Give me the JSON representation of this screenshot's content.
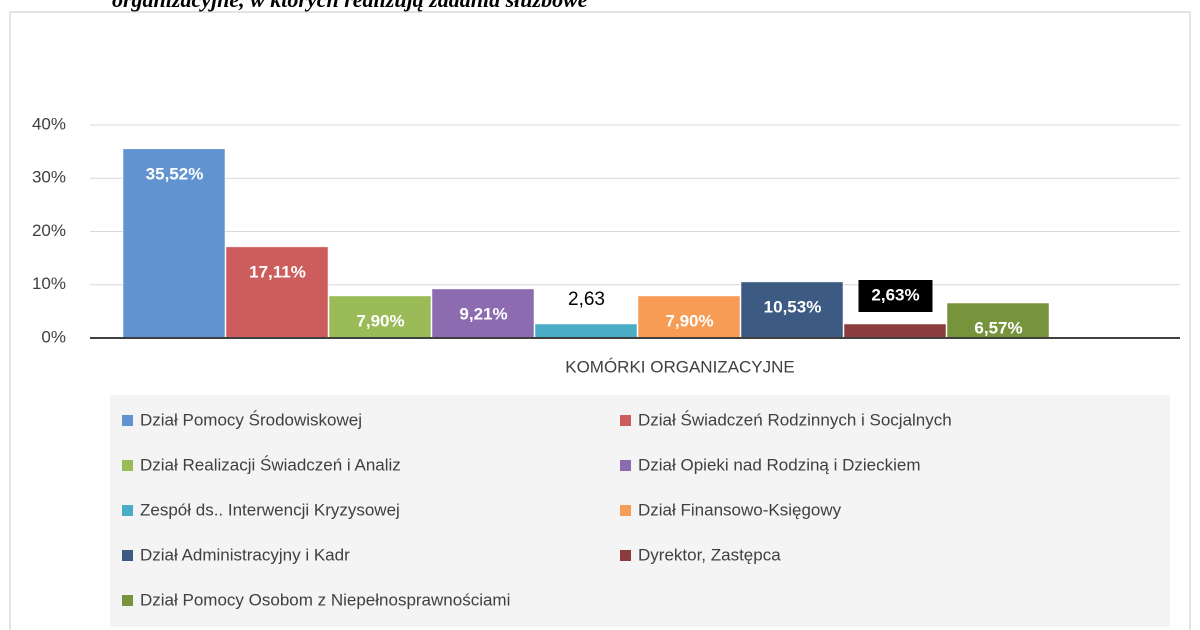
{
  "chart_data": {
    "type": "bar",
    "title": "organizacyjne, w których realizują zadania służbowe",
    "categories": [
      "KOMÓRKI ORGANIZACYJNE"
    ],
    "ylim": [
      0,
      40
    ],
    "yticks": [
      {
        "value": 0,
        "label": "0%"
      },
      {
        "value": 10,
        "label": "10%"
      },
      {
        "value": 20,
        "label": "20%"
      },
      {
        "value": 30,
        "label": "30%"
      },
      {
        "value": 40,
        "label": "40%"
      }
    ],
    "grid": true,
    "legend": "bottom",
    "series": [
      {
        "name": "Dział Pomocy Środowiskowej",
        "color": "#6193d0",
        "values": [
          35.52
        ],
        "value_labels": [
          "35,52%"
        ],
        "label_style": "inside"
      },
      {
        "name": "Dział Świadczeń Rodzinnych i Socjalnych",
        "color": "#cd5c5c",
        "values": [
          17.11
        ],
        "value_labels": [
          "17,11%"
        ],
        "label_style": "inside"
      },
      {
        "name": "Dział Realizacji Świadczeń i Analiz",
        "color": "#9bbb59",
        "values": [
          7.9
        ],
        "value_labels": [
          "7,90%"
        ],
        "label_style": "inside"
      },
      {
        "name": "Dział Opieki nad Rodziną i Dzieckiem",
        "color": "#8c6bb1",
        "values": [
          9.21
        ],
        "value_labels": [
          "9,21%"
        ],
        "label_style": "inside"
      },
      {
        "name": "Zespół ds.. Interwencji Kryzysowej",
        "color": "#4bacc6",
        "values": [
          2.63
        ],
        "value_labels": [
          "2,63"
        ],
        "label_style": "above"
      },
      {
        "name": "Dział Finansowo-Księgowy",
        "color": "#f79c55",
        "values": [
          7.9
        ],
        "value_labels": [
          "7,90%"
        ],
        "label_style": "inside"
      },
      {
        "name": "Dział Administracyjny i Kadr",
        "color": "#3d5a82",
        "values": [
          10.53
        ],
        "value_labels": [
          "10,53%"
        ],
        "label_style": "inside"
      },
      {
        "name": "Dyrektor, Zastępca",
        "color": "#8b3d3d",
        "values": [
          2.63
        ],
        "value_labels": [
          "2,63%"
        ],
        "label_style": "boxed"
      },
      {
        "name": "Dział Pomocy Osobom z Niepełnosprawnościami",
        "color": "#77933c",
        "values": [
          6.57
        ],
        "value_labels": [
          "6,57%"
        ],
        "label_style": "inside"
      }
    ]
  }
}
